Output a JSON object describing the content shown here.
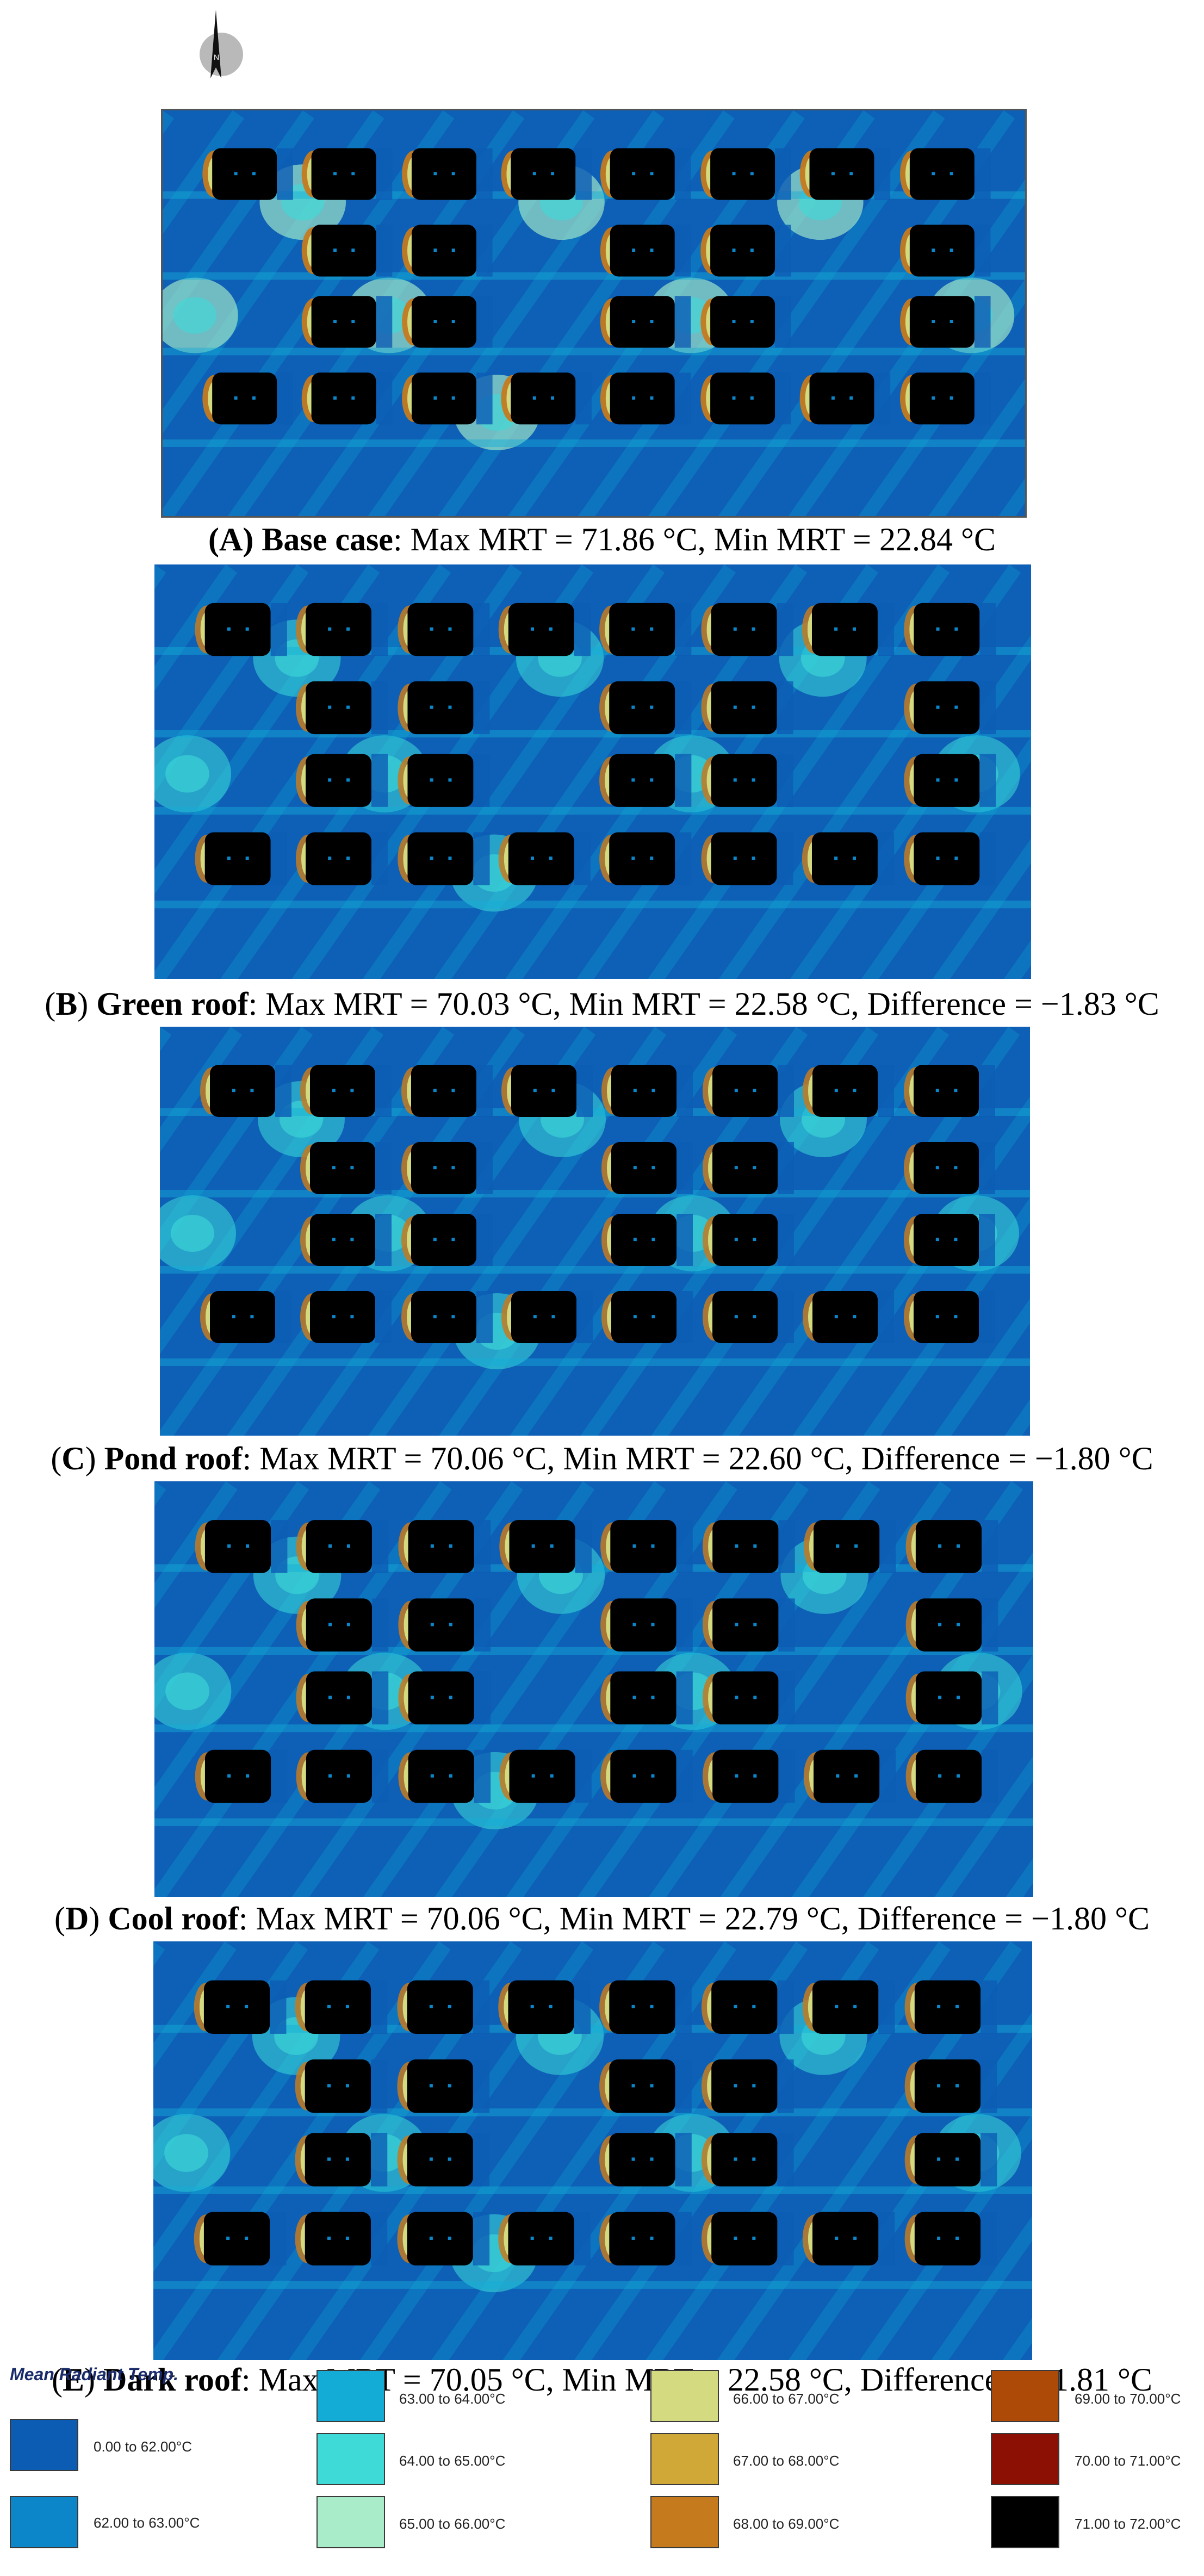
{
  "north_arrow": {
    "letter": "N"
  },
  "panels": [
    {
      "letter": "A",
      "name": "Base case",
      "max": "71.86 °C",
      "min": "22.84 °C",
      "diff": ""
    },
    {
      "letter": "B",
      "name": "Green roof",
      "max": "70.03 °C",
      "min": "22.58 °C",
      "diff": "−1.83 °C"
    },
    {
      "letter": "C",
      "name": "Pond roof",
      "max": "70.06 °C",
      "min": "22.60 °C",
      "diff": "−1.80 °C"
    },
    {
      "letter": "D",
      "name": "Cool roof",
      "max": "70.06 °C",
      "min": "22.79 °C",
      "diff": "−1.80 °C"
    },
    {
      "letter": "E",
      "name": "Dark roof",
      "max": "70.05 °C",
      "min": "22.58 °C",
      "diff": "−1.81 °C"
    }
  ],
  "legend": {
    "title": "Mean Radiant Temp.",
    "items": [
      {
        "label": "0.00 to 62.00°C",
        "color": "#0c5cb4"
      },
      {
        "label": "62.00 to 63.00°C",
        "color": "#0c86c8"
      },
      {
        "label": "63.00 to 64.00°C",
        "color": "#13acd6"
      },
      {
        "label": "64.00 to 65.00°C",
        "color": "#3ddad8"
      },
      {
        "label": "65.00 to 66.00°C",
        "color": "#a8ecca"
      },
      {
        "label": "66.00 to 67.00°C",
        "color": "#d4da80"
      },
      {
        "label": "67.00 to 68.00°C",
        "color": "#d0a838"
      },
      {
        "label": "68.00 to 69.00°C",
        "color": "#c67a1e"
      },
      {
        "label": "69.00 to 70.00°C",
        "color": "#ae4a08"
      },
      {
        "label": "70.00 to 71.00°C",
        "color": "#8c1004"
      },
      {
        "label": "71.00 to 72.00°C",
        "color": "#000000"
      }
    ]
  }
}
